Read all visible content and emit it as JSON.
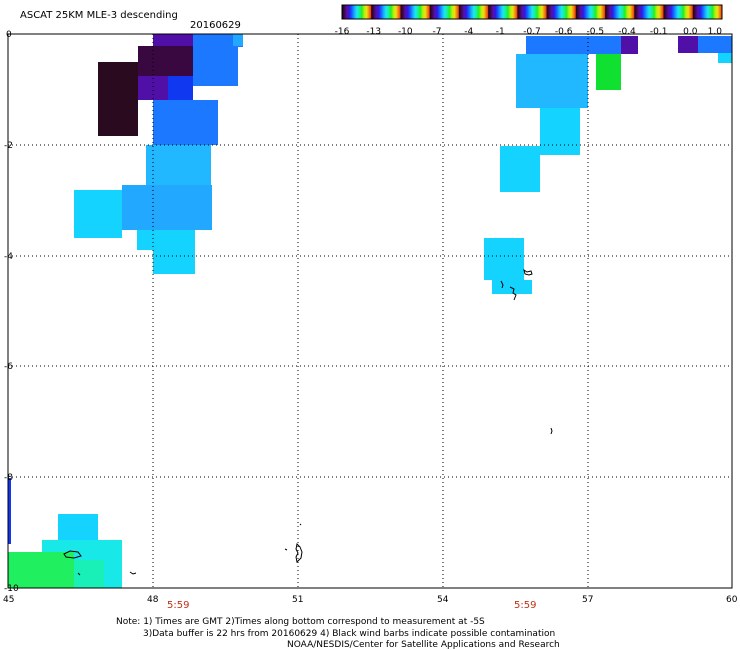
{
  "header": {
    "title": "ASCAT 25KM MLE-3 descending",
    "date": "20160629"
  },
  "colorbar": {
    "labels": [
      "-16",
      "-13",
      "-10",
      "-7",
      "-4",
      "-1",
      "-0.7",
      "-0.6",
      "-0.5",
      "-0.4",
      "-0.1",
      "0.0",
      "1.0"
    ],
    "colors": [
      "#1e0010",
      "#3c0a50",
      "#5a10a8",
      "#3018e8",
      "#1060ff",
      "#1ca8ff",
      "#18e8f0",
      "#18f0a0",
      "#20f020",
      "#b0f010",
      "#f0e010",
      "#f08010",
      "#f02010"
    ]
  },
  "map": {
    "lon_labels": [
      "45",
      "48",
      "51",
      "54",
      "57",
      "60"
    ],
    "lat_labels": [
      "0",
      "-2",
      "-4",
      "-6",
      "-8",
      "-10"
    ],
    "time_labels": [
      "5:59",
      "5:59"
    ],
    "colors": {
      "darkest": "#2a0a1e",
      "deep_purple": "#3a0840",
      "purple": "#5010a8",
      "blue": "#1038f0",
      "mid_blue": "#1c78ff",
      "light_blue": "#22a8ff",
      "sky": "#22b8ff",
      "cyan": "#14d4ff",
      "aqua": "#18e8e8",
      "sea_green": "#18f0b8",
      "green": "#20f060",
      "bright_green": "#10e030"
    }
  },
  "footer": {
    "line1": "Note: 1) Times are GMT 2)Times along bottom correspond to measurement at -5S",
    "line2": "3)Data buffer is 22 hrs from 20160629 4) Black wind barbs indicate possible contamination",
    "line3": "NOAA/NESDIS/Center for Satellite Applications and Research"
  }
}
